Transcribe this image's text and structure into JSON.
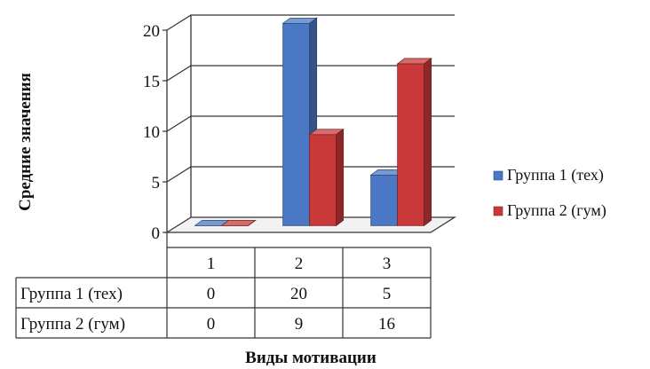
{
  "chart_data": {
    "type": "bar",
    "style": "3d-clustered-column-with-data-table",
    "categories": [
      "1",
      "2",
      "3"
    ],
    "series": [
      {
        "name": "Группа 1 (тех)",
        "values": [
          0,
          20,
          5
        ],
        "color": "#4a78c4"
      },
      {
        "name": "Группа 2 (гум)",
        "values": [
          0,
          9,
          16
        ],
        "color": "#c9393a"
      }
    ],
    "xlabel": "Виды мотивации",
    "ylabel": "Средние значения",
    "ylim": [
      0,
      20
    ],
    "yticks": [
      0,
      5,
      10,
      15,
      20
    ],
    "grid": true,
    "legend_position": "right",
    "data_table": true
  }
}
